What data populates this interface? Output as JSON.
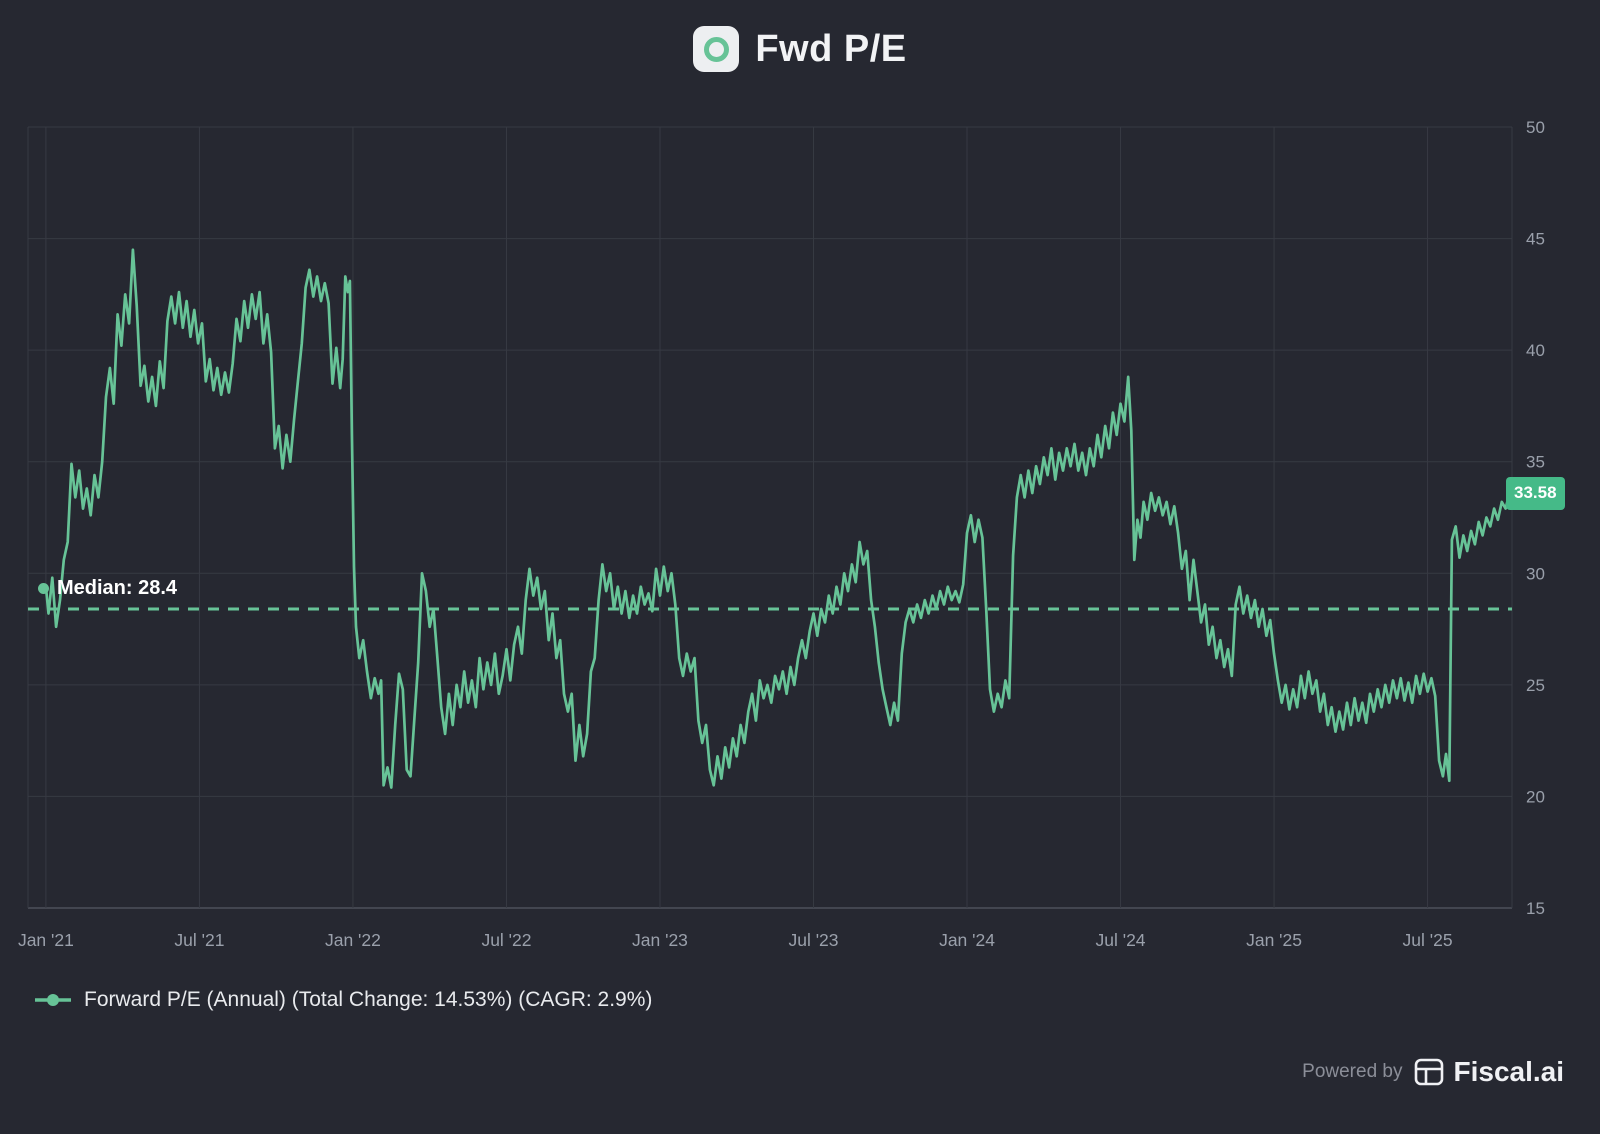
{
  "header": {
    "title": "Fwd P/E"
  },
  "legend": {
    "label": "Forward P/E (Annual) (Total Change: 14.53%) (CAGR: 2.9%)"
  },
  "footer": {
    "powered_by": "Powered by",
    "brand": "Fiscal.ai"
  },
  "colors": {
    "background": "#262831",
    "grid": "#373a43",
    "axis_line": "#4d505a",
    "axis_text": "#9aa0ab",
    "line": "#67c397",
    "badge_bg": "#45ba88",
    "badge_text": "#ffffff"
  },
  "chart_data": {
    "type": "line",
    "title": "Fwd P/E",
    "series_name": "Forward P/E (Annual)",
    "total_change_pct": 14.53,
    "cagr_pct": 2.9,
    "median": 28.4,
    "median_label": "Median: 28.4",
    "last_value": 33.58,
    "last_value_label": "33.58",
    "y_ticks": [
      15,
      20,
      25,
      30,
      35,
      40,
      45,
      50
    ],
    "y_range": [
      15,
      50
    ],
    "x_unit": "months since Jan 2021",
    "x_range": [
      -0.7,
      57.3
    ],
    "x_ticks": [
      {
        "t": 0,
        "label": "Jan '21"
      },
      {
        "t": 6,
        "label": "Jul '21"
      },
      {
        "t": 12,
        "label": "Jan '22"
      },
      {
        "t": 18,
        "label": "Jul '22"
      },
      {
        "t": 24,
        "label": "Jan '23"
      },
      {
        "t": 30,
        "label": "Jul '23"
      },
      {
        "t": 36,
        "label": "Jan '24"
      },
      {
        "t": 42,
        "label": "Jul '24"
      },
      {
        "t": 48,
        "label": "Jan '25"
      },
      {
        "t": 54,
        "label": "Jul '25"
      }
    ],
    "points": [
      [
        0,
        29.4
      ],
      [
        0.1,
        28.2
      ],
      [
        0.25,
        29.8
      ],
      [
        0.4,
        27.6
      ],
      [
        0.55,
        28.8
      ],
      [
        0.7,
        30.6
      ],
      [
        0.85,
        31.4
      ],
      [
        1,
        34.9
      ],
      [
        1.15,
        33.4
      ],
      [
        1.3,
        34.6
      ],
      [
        1.45,
        32.9
      ],
      [
        1.6,
        33.8
      ],
      [
        1.75,
        32.6
      ],
      [
        1.9,
        34.4
      ],
      [
        2.05,
        33.4
      ],
      [
        2.2,
        35
      ],
      [
        2.35,
        37.9
      ],
      [
        2.5,
        39.2
      ],
      [
        2.65,
        37.6
      ],
      [
        2.8,
        41.6
      ],
      [
        2.95,
        40.2
      ],
      [
        3.1,
        42.5
      ],
      [
        3.25,
        41.2
      ],
      [
        3.4,
        44.5
      ],
      [
        3.55,
        42
      ],
      [
        3.7,
        38.4
      ],
      [
        3.85,
        39.3
      ],
      [
        4,
        37.7
      ],
      [
        4.15,
        38.8
      ],
      [
        4.3,
        37.5
      ],
      [
        4.45,
        39.5
      ],
      [
        4.6,
        38.3
      ],
      [
        4.75,
        41.3
      ],
      [
        4.9,
        42.4
      ],
      [
        5.05,
        41.2
      ],
      [
        5.2,
        42.6
      ],
      [
        5.35,
        41
      ],
      [
        5.5,
        42.2
      ],
      [
        5.65,
        40.6
      ],
      [
        5.8,
        41.8
      ],
      [
        5.95,
        40.3
      ],
      [
        6.1,
        41.2
      ],
      [
        6.25,
        38.6
      ],
      [
        6.4,
        39.6
      ],
      [
        6.55,
        38.2
      ],
      [
        6.7,
        39.2
      ],
      [
        6.85,
        38
      ],
      [
        7,
        39
      ],
      [
        7.15,
        38.1
      ],
      [
        7.3,
        39.4
      ],
      [
        7.45,
        41.4
      ],
      [
        7.6,
        40.4
      ],
      [
        7.75,
        42.2
      ],
      [
        7.9,
        41
      ],
      [
        8.05,
        42.5
      ],
      [
        8.2,
        41.4
      ],
      [
        8.35,
        42.6
      ],
      [
        8.5,
        40.3
      ],
      [
        8.65,
        41.6
      ],
      [
        8.8,
        39.9
      ],
      [
        8.95,
        35.6
      ],
      [
        9.1,
        36.6
      ],
      [
        9.25,
        34.7
      ],
      [
        9.4,
        36.2
      ],
      [
        9.55,
        35
      ],
      [
        9.7,
        36.9
      ],
      [
        9.85,
        38.6
      ],
      [
        10,
        40.3
      ],
      [
        10.15,
        42.8
      ],
      [
        10.3,
        43.6
      ],
      [
        10.45,
        42.4
      ],
      [
        10.6,
        43.3
      ],
      [
        10.75,
        42.2
      ],
      [
        10.9,
        43
      ],
      [
        11.05,
        42.1
      ],
      [
        11.2,
        38.5
      ],
      [
        11.35,
        40.1
      ],
      [
        11.5,
        38.3
      ],
      [
        11.6,
        39.6
      ],
      [
        11.7,
        43.3
      ],
      [
        11.8,
        42.6
      ],
      [
        11.88,
        43.1
      ],
      [
        11.96,
        36.2
      ],
      [
        12.04,
        30.3
      ],
      [
        12.12,
        27.6
      ],
      [
        12.25,
        26.2
      ],
      [
        12.4,
        27
      ],
      [
        12.55,
        25.6
      ],
      [
        12.7,
        24.4
      ],
      [
        12.85,
        25.3
      ],
      [
        13,
        24.6
      ],
      [
        13.1,
        25.2
      ],
      [
        13.2,
        20.5
      ],
      [
        13.35,
        21.3
      ],
      [
        13.5,
        20.4
      ],
      [
        13.65,
        23.2
      ],
      [
        13.8,
        25.5
      ],
      [
        13.95,
        24.8
      ],
      [
        14.1,
        21.2
      ],
      [
        14.25,
        20.9
      ],
      [
        14.4,
        23.5
      ],
      [
        14.55,
        26
      ],
      [
        14.7,
        30
      ],
      [
        14.85,
        29.2
      ],
      [
        15,
        27.6
      ],
      [
        15.15,
        28.4
      ],
      [
        15.3,
        26.2
      ],
      [
        15.45,
        24
      ],
      [
        15.6,
        22.8
      ],
      [
        15.75,
        24.6
      ],
      [
        15.9,
        23.2
      ],
      [
        16.05,
        25
      ],
      [
        16.2,
        24
      ],
      [
        16.35,
        25.6
      ],
      [
        16.5,
        24.2
      ],
      [
        16.65,
        25.2
      ],
      [
        16.8,
        24
      ],
      [
        16.95,
        26.2
      ],
      [
        17.1,
        24.8
      ],
      [
        17.25,
        26
      ],
      [
        17.4,
        25
      ],
      [
        17.55,
        26.4
      ],
      [
        17.7,
        24.6
      ],
      [
        17.85,
        25.4
      ],
      [
        18,
        26.6
      ],
      [
        18.15,
        25.2
      ],
      [
        18.3,
        26.8
      ],
      [
        18.45,
        27.6
      ],
      [
        18.6,
        26.4
      ],
      [
        18.75,
        28.8
      ],
      [
        18.9,
        30.2
      ],
      [
        19.05,
        29
      ],
      [
        19.2,
        29.8
      ],
      [
        19.35,
        28.4
      ],
      [
        19.5,
        29.2
      ],
      [
        19.65,
        27
      ],
      [
        19.8,
        28.2
      ],
      [
        19.95,
        26.2
      ],
      [
        20.1,
        27
      ],
      [
        20.25,
        24.6
      ],
      [
        20.4,
        23.8
      ],
      [
        20.55,
        24.6
      ],
      [
        20.7,
        21.6
      ],
      [
        20.85,
        23.2
      ],
      [
        21,
        21.8
      ],
      [
        21.15,
        22.8
      ],
      [
        21.3,
        25.6
      ],
      [
        21.45,
        26.2
      ],
      [
        21.6,
        28.8
      ],
      [
        21.75,
        30.4
      ],
      [
        21.9,
        29.2
      ],
      [
        22.05,
        30
      ],
      [
        22.2,
        28.4
      ],
      [
        22.35,
        29.4
      ],
      [
        22.5,
        28.2
      ],
      [
        22.65,
        29.2
      ],
      [
        22.8,
        28
      ],
      [
        22.95,
        29
      ],
      [
        23.1,
        28.2
      ],
      [
        23.25,
        29.4
      ],
      [
        23.4,
        28.6
      ],
      [
        23.55,
        29.1
      ],
      [
        23.7,
        28.3
      ],
      [
        23.85,
        30.2
      ],
      [
        24,
        29
      ],
      [
        24.15,
        30.3
      ],
      [
        24.3,
        29.2
      ],
      [
        24.45,
        30
      ],
      [
        24.6,
        28.6
      ],
      [
        24.75,
        26.2
      ],
      [
        24.9,
        25.4
      ],
      [
        25.05,
        26.4
      ],
      [
        25.2,
        25.6
      ],
      [
        25.35,
        26.2
      ],
      [
        25.5,
        23.4
      ],
      [
        25.65,
        22.4
      ],
      [
        25.8,
        23.2
      ],
      [
        25.95,
        21.2
      ],
      [
        26.1,
        20.5
      ],
      [
        26.25,
        21.8
      ],
      [
        26.4,
        20.8
      ],
      [
        26.55,
        22.2
      ],
      [
        26.7,
        21.3
      ],
      [
        26.85,
        22.6
      ],
      [
        27,
        21.8
      ],
      [
        27.15,
        23.2
      ],
      [
        27.3,
        22.4
      ],
      [
        27.45,
        23.8
      ],
      [
        27.6,
        24.6
      ],
      [
        27.75,
        23.4
      ],
      [
        27.9,
        25.2
      ],
      [
        28.05,
        24.4
      ],
      [
        28.2,
        25
      ],
      [
        28.35,
        24.2
      ],
      [
        28.5,
        25.4
      ],
      [
        28.65,
        24.8
      ],
      [
        28.8,
        25.6
      ],
      [
        28.95,
        24.6
      ],
      [
        29.1,
        25.8
      ],
      [
        29.25,
        25
      ],
      [
        29.4,
        26.2
      ],
      [
        29.55,
        27
      ],
      [
        29.7,
        26.2
      ],
      [
        29.85,
        27.4
      ],
      [
        30,
        28.2
      ],
      [
        30.15,
        27.2
      ],
      [
        30.3,
        28.4
      ],
      [
        30.45,
        27.8
      ],
      [
        30.6,
        29
      ],
      [
        30.75,
        28.2
      ],
      [
        30.9,
        29.4
      ],
      [
        31.05,
        28.6
      ],
      [
        31.2,
        30
      ],
      [
        31.35,
        29.2
      ],
      [
        31.5,
        30.4
      ],
      [
        31.65,
        29.6
      ],
      [
        31.8,
        31.4
      ],
      [
        31.95,
        30.4
      ],
      [
        32.1,
        31
      ],
      [
        32.25,
        28.8
      ],
      [
        32.4,
        27.6
      ],
      [
        32.55,
        26
      ],
      [
        32.7,
        24.8
      ],
      [
        32.85,
        24
      ],
      [
        33,
        23.2
      ],
      [
        33.15,
        24.2
      ],
      [
        33.3,
        23.4
      ],
      [
        33.45,
        26.4
      ],
      [
        33.6,
        27.8
      ],
      [
        33.75,
        28.4
      ],
      [
        33.9,
        27.8
      ],
      [
        34.05,
        28.6
      ],
      [
        34.2,
        28
      ],
      [
        34.35,
        28.8
      ],
      [
        34.5,
        28.2
      ],
      [
        34.65,
        29
      ],
      [
        34.8,
        28.4
      ],
      [
        34.95,
        29.2
      ],
      [
        35.1,
        28.6
      ],
      [
        35.25,
        29.4
      ],
      [
        35.4,
        28.8
      ],
      [
        35.55,
        29.2
      ],
      [
        35.7,
        28.7
      ],
      [
        35.85,
        29.5
      ],
      [
        36,
        31.8
      ],
      [
        36.15,
        32.6
      ],
      [
        36.3,
        31.4
      ],
      [
        36.45,
        32.4
      ],
      [
        36.6,
        31.6
      ],
      [
        36.75,
        28.4
      ],
      [
        36.9,
        24.8
      ],
      [
        37.05,
        23.8
      ],
      [
        37.2,
        24.6
      ],
      [
        37.35,
        24
      ],
      [
        37.5,
        25.2
      ],
      [
        37.65,
        24.4
      ],
      [
        37.8,
        30.8
      ],
      [
        37.95,
        33.4
      ],
      [
        38.1,
        34.4
      ],
      [
        38.25,
        33.4
      ],
      [
        38.4,
        34.6
      ],
      [
        38.55,
        33.6
      ],
      [
        38.7,
        34.8
      ],
      [
        38.85,
        34
      ],
      [
        39,
        35.2
      ],
      [
        39.15,
        34.4
      ],
      [
        39.3,
        35.6
      ],
      [
        39.45,
        34.2
      ],
      [
        39.6,
        35.4
      ],
      [
        39.75,
        34.6
      ],
      [
        39.9,
        35.6
      ],
      [
        40.05,
        34.8
      ],
      [
        40.2,
        35.8
      ],
      [
        40.35,
        34.6
      ],
      [
        40.5,
        35.4
      ],
      [
        40.65,
        34.4
      ],
      [
        40.8,
        35.6
      ],
      [
        40.95,
        34.8
      ],
      [
        41.1,
        36.2
      ],
      [
        41.25,
        35.2
      ],
      [
        41.4,
        36.6
      ],
      [
        41.55,
        35.6
      ],
      [
        41.7,
        37.2
      ],
      [
        41.85,
        36.2
      ],
      [
        42,
        37.6
      ],
      [
        42.15,
        36.8
      ],
      [
        42.3,
        38.8
      ],
      [
        42.42,
        36.4
      ],
      [
        42.54,
        30.6
      ],
      [
        42.66,
        32.4
      ],
      [
        42.78,
        31.6
      ],
      [
        42.9,
        33.2
      ],
      [
        43.05,
        32.4
      ],
      [
        43.2,
        33.6
      ],
      [
        43.35,
        32.8
      ],
      [
        43.5,
        33.4
      ],
      [
        43.65,
        32.6
      ],
      [
        43.8,
        33.2
      ],
      [
        43.95,
        32.2
      ],
      [
        44.1,
        33
      ],
      [
        44.25,
        31.8
      ],
      [
        44.4,
        30.2
      ],
      [
        44.55,
        31
      ],
      [
        44.7,
        28.8
      ],
      [
        44.85,
        30.6
      ],
      [
        45,
        29.2
      ],
      [
        45.15,
        27.8
      ],
      [
        45.3,
        28.6
      ],
      [
        45.45,
        26.8
      ],
      [
        45.6,
        27.6
      ],
      [
        45.75,
        26.2
      ],
      [
        45.9,
        27
      ],
      [
        46.05,
        25.8
      ],
      [
        46.2,
        26.6
      ],
      [
        46.35,
        25.4
      ],
      [
        46.5,
        28.6
      ],
      [
        46.65,
        29.4
      ],
      [
        46.8,
        28.2
      ],
      [
        46.95,
        29
      ],
      [
        47.1,
        28
      ],
      [
        47.25,
        28.8
      ],
      [
        47.4,
        27.6
      ],
      [
        47.55,
        28.4
      ],
      [
        47.7,
        27.2
      ],
      [
        47.85,
        27.9
      ],
      [
        48,
        26.4
      ],
      [
        48.15,
        25.2
      ],
      [
        48.3,
        24.2
      ],
      [
        48.45,
        25
      ],
      [
        48.6,
        23.9
      ],
      [
        48.75,
        24.8
      ],
      [
        48.9,
        24
      ],
      [
        49.05,
        25.4
      ],
      [
        49.2,
        24.4
      ],
      [
        49.35,
        25.6
      ],
      [
        49.5,
        24.6
      ],
      [
        49.65,
        25.2
      ],
      [
        49.8,
        23.8
      ],
      [
        49.95,
        24.6
      ],
      [
        50.1,
        23.2
      ],
      [
        50.25,
        24
      ],
      [
        50.4,
        22.9
      ],
      [
        50.55,
        23.8
      ],
      [
        50.7,
        23
      ],
      [
        50.85,
        24.2
      ],
      [
        51,
        23.2
      ],
      [
        51.15,
        24.4
      ],
      [
        51.3,
        23.4
      ],
      [
        51.45,
        24.2
      ],
      [
        51.6,
        23.3
      ],
      [
        51.75,
        24.6
      ],
      [
        51.9,
        23.8
      ],
      [
        52.05,
        24.8
      ],
      [
        52.2,
        24
      ],
      [
        52.35,
        25
      ],
      [
        52.5,
        24.2
      ],
      [
        52.65,
        25.2
      ],
      [
        52.8,
        24.4
      ],
      [
        52.95,
        25.3
      ],
      [
        53.1,
        24.3
      ],
      [
        53.25,
        25.1
      ],
      [
        53.4,
        24.2
      ],
      [
        53.55,
        25.4
      ],
      [
        53.7,
        24.6
      ],
      [
        53.85,
        25.5
      ],
      [
        54,
        24.7
      ],
      [
        54.15,
        25.3
      ],
      [
        54.3,
        24.5
      ],
      [
        54.45,
        21.6
      ],
      [
        54.6,
        20.9
      ],
      [
        54.72,
        21.9
      ],
      [
        54.85,
        20.7
      ],
      [
        54.95,
        31.5
      ],
      [
        55.1,
        32.1
      ],
      [
        55.25,
        30.7
      ],
      [
        55.4,
        31.7
      ],
      [
        55.55,
        31
      ],
      [
        55.7,
        31.9
      ],
      [
        55.85,
        31.3
      ],
      [
        56,
        32.3
      ],
      [
        56.15,
        31.7
      ],
      [
        56.3,
        32.5
      ],
      [
        56.45,
        32.1
      ],
      [
        56.6,
        32.9
      ],
      [
        56.75,
        32.4
      ],
      [
        56.9,
        33.2
      ],
      [
        57.05,
        32.9
      ],
      [
        57.2,
        33.58
      ]
    ]
  }
}
